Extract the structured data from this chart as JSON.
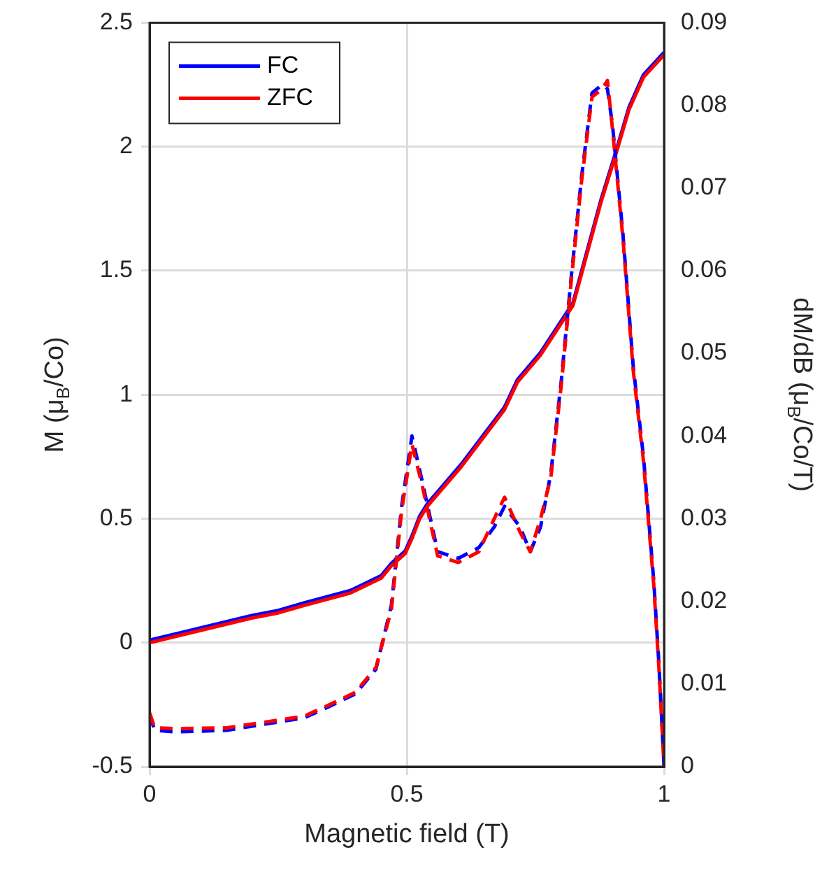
{
  "chart_data": {
    "type": "line",
    "xlabel": "Magnetic field (T)",
    "ylabel": "M (μ$_{B}$/Co)",
    "y2label": "dM/dB (μ$_{B}$/Co/T)",
    "xlim": [
      0,
      1
    ],
    "xticks": [
      0,
      0.5,
      1
    ],
    "ylim": [
      -0.5,
      2.5
    ],
    "yticks": [
      -0.5,
      0,
      0.5,
      1,
      1.5,
      2,
      2.5
    ],
    "y2lim": [
      0,
      0.09
    ],
    "y2ticks": [
      0,
      0.01,
      0.02,
      0.03,
      0.04,
      0.05,
      0.06,
      0.07,
      0.08,
      0.09
    ],
    "grid": true,
    "legend": "top left",
    "series": [
      {
        "name": "FC",
        "color": "#0000ff",
        "line_style": "solid",
        "x": [
          0,
          0.1,
          0.2,
          0.25,
          0.3,
          0.39,
          0.45,
          0.47,
          0.497,
          0.51,
          0.525,
          0.54,
          0.606,
          0.69,
          0.715,
          0.76,
          0.823,
          0.878,
          0.905,
          0.932,
          0.96,
          1.0
        ],
        "values": [
          0.01,
          0.06,
          0.11,
          0.13,
          0.16,
          0.21,
          0.27,
          0.32,
          0.37,
          0.43,
          0.51,
          0.56,
          0.72,
          0.95,
          1.06,
          1.17,
          1.37,
          1.79,
          1.97,
          2.16,
          2.29,
          2.38
        ]
      },
      {
        "name": "ZFC",
        "color": "#ff0000",
        "line_style": "solid",
        "x": [
          0,
          0.1,
          0.2,
          0.25,
          0.3,
          0.39,
          0.45,
          0.47,
          0.497,
          0.51,
          0.525,
          0.54,
          0.606,
          0.69,
          0.715,
          0.76,
          0.823,
          0.878,
          0.905,
          0.932,
          0.96,
          1.0
        ],
        "values": [
          0,
          0.05,
          0.1,
          0.12,
          0.15,
          0.2,
          0.26,
          0.31,
          0.36,
          0.42,
          0.5,
          0.55,
          0.71,
          0.94,
          1.05,
          1.16,
          1.36,
          1.78,
          1.96,
          2.15,
          2.28,
          2.37
        ]
      },
      {
        "color": "#0000ff",
        "line_style": "dashed",
        "axis": "y2",
        "x": [
          0,
          0.01,
          0.05,
          0.15,
          0.3,
          0.35,
          0.4,
          0.44,
          0.47,
          0.49,
          0.51,
          0.53,
          0.56,
          0.6,
          0.64,
          0.67,
          0.69,
          0.72,
          0.74,
          0.76,
          0.78,
          0.8,
          0.82,
          0.84,
          0.86,
          0.88,
          0.89,
          0.9,
          0.92,
          0.94,
          0.96,
          0.98,
          0.99,
          1.0
        ],
        "values": [
          0.0062,
          0.0044,
          0.0042,
          0.0044,
          0.0059,
          0.0073,
          0.0088,
          0.0118,
          0.0195,
          0.0315,
          0.04,
          0.0345,
          0.026,
          0.0252,
          0.0265,
          0.029,
          0.0315,
          0.029,
          0.026,
          0.029,
          0.0355,
          0.0465,
          0.0595,
          0.0715,
          0.0815,
          0.0825,
          0.082,
          0.0775,
          0.0645,
          0.0485,
          0.0375,
          0.0225,
          0.0125,
          0
        ]
      },
      {
        "color": "#ff0000",
        "line_style": "dashed",
        "axis": "y2",
        "x": [
          0,
          0.01,
          0.05,
          0.15,
          0.3,
          0.35,
          0.4,
          0.44,
          0.47,
          0.49,
          0.51,
          0.53,
          0.56,
          0.6,
          0.64,
          0.67,
          0.69,
          0.72,
          0.74,
          0.76,
          0.78,
          0.8,
          0.82,
          0.84,
          0.86,
          0.88,
          0.89,
          0.9,
          0.92,
          0.94,
          0.96,
          0.98,
          0.99,
          1.0
        ],
        "values": [
          0.0065,
          0.0047,
          0.0046,
          0.0047,
          0.0061,
          0.0075,
          0.009,
          0.012,
          0.019,
          0.031,
          0.039,
          0.034,
          0.0255,
          0.0247,
          0.026,
          0.03,
          0.0326,
          0.0284,
          0.026,
          0.03,
          0.035,
          0.046,
          0.059,
          0.071,
          0.081,
          0.082,
          0.083,
          0.077,
          0.064,
          0.048,
          0.037,
          0.022,
          0.012,
          0
        ]
      }
    ]
  }
}
